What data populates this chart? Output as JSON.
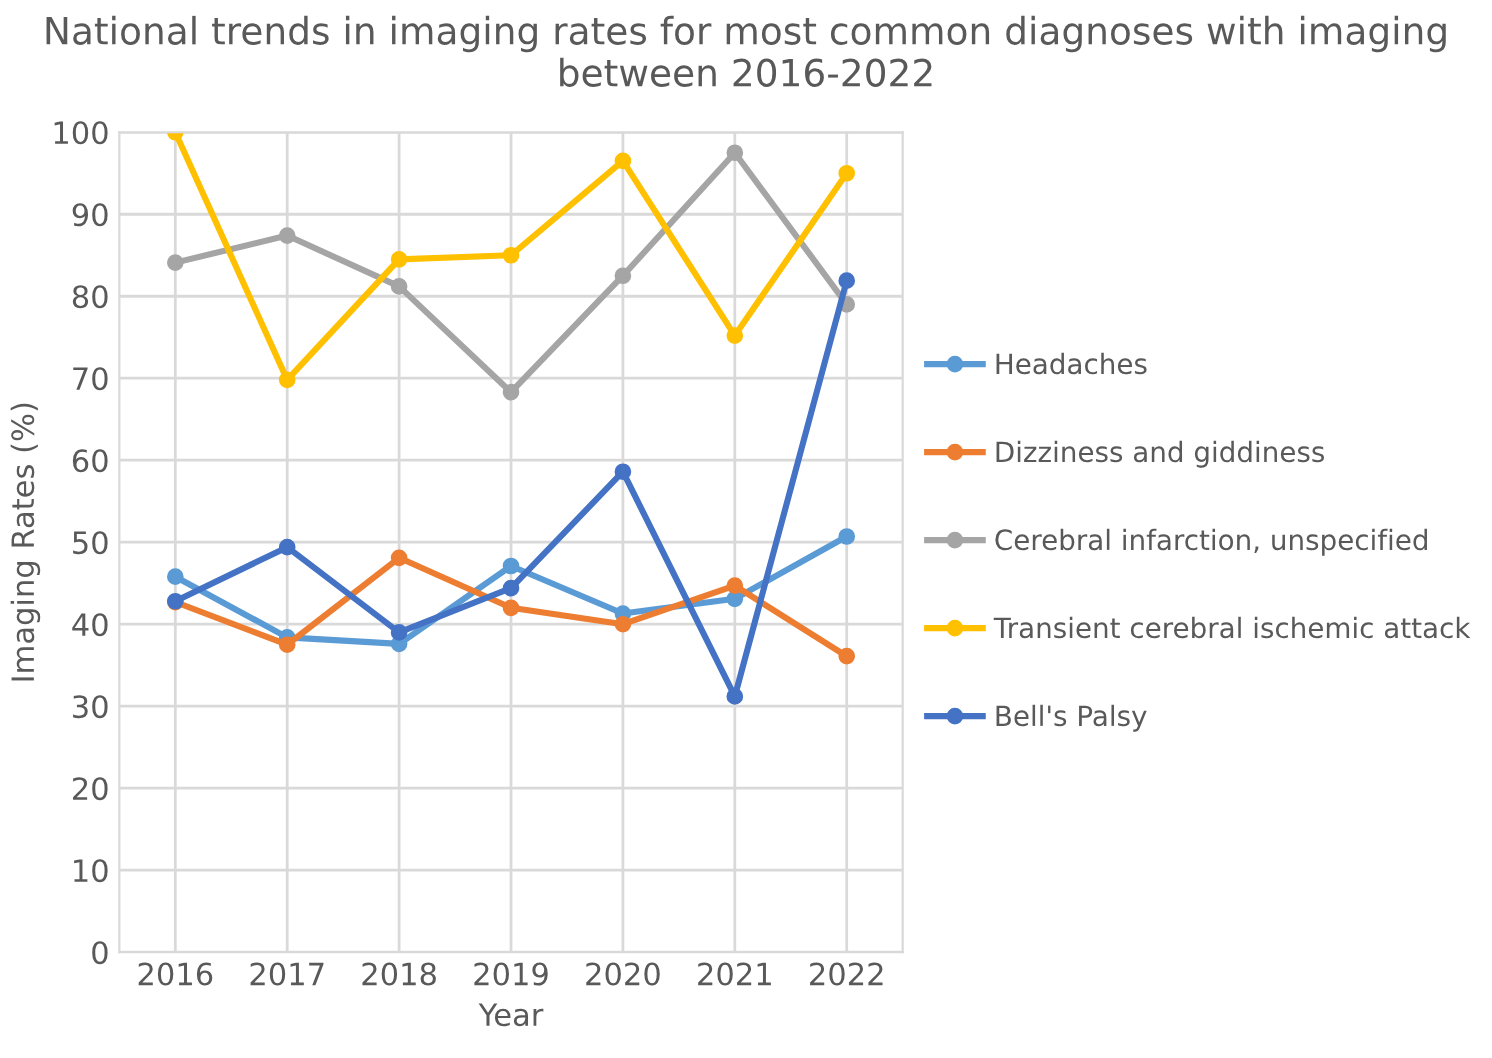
{
  "chart_data": {
    "type": "line",
    "title": "National trends in imaging rates for most common diagnoses with imaging between 2016-2022",
    "xlabel": "Year",
    "ylabel": "Imaging Rates (%)",
    "categories": [
      "2016",
      "2017",
      "2018",
      "2019",
      "2020",
      "2021",
      "2022"
    ],
    "series": [
      {
        "name": "Headaches",
        "color": "#5b9bd5",
        "values": [
          45.8,
          38.4,
          37.6,
          47.1,
          41.3,
          43.1,
          50.7
        ]
      },
      {
        "name": "Dizziness and giddiness",
        "color": "#ed7d31",
        "values": [
          42.7,
          37.5,
          48.1,
          42.0,
          40.0,
          44.7,
          36.1
        ]
      },
      {
        "name": "Cerebral infarction, unspecified",
        "color": "#a5a5a5",
        "values": [
          84.1,
          87.4,
          81.2,
          68.3,
          82.5,
          97.5,
          79.0
        ]
      },
      {
        "name": "Transient cerebral ischemic attack",
        "color": "#ffc000",
        "values": [
          100,
          69.8,
          84.5,
          85.0,
          96.5,
          75.2,
          95.0
        ]
      },
      {
        "name": "Bell's Palsy",
        "color": "#4472c4",
        "values": [
          42.8,
          49.4,
          39.0,
          44.4,
          58.6,
          31.2,
          81.9
        ]
      }
    ],
    "ylim": [
      0,
      100
    ],
    "yticks": [
      0,
      10,
      20,
      30,
      40,
      50,
      60,
      70,
      80,
      90,
      100
    ],
    "grid": true,
    "legend": "right",
    "marker": "circle",
    "line_style": "solid"
  }
}
